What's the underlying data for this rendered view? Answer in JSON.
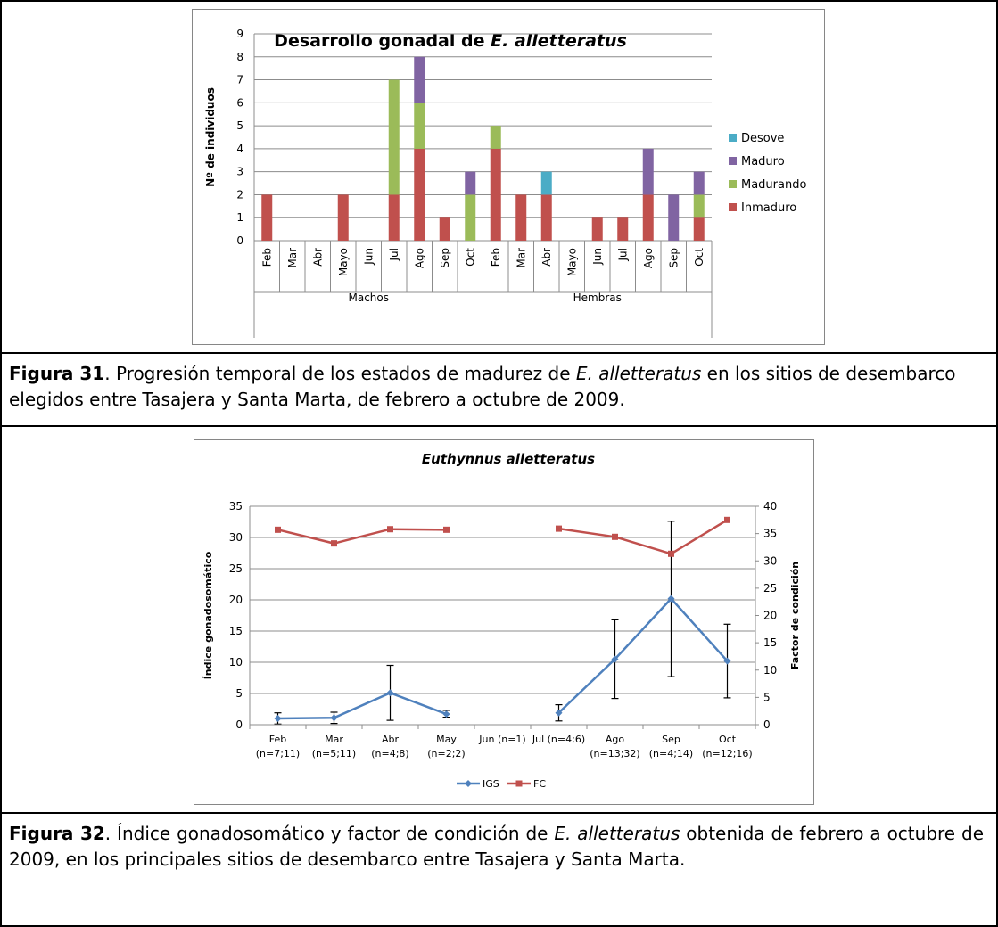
{
  "caption1": {
    "label": "Figura 31",
    "text_a": ". Progresión temporal de los estados de madurez de ",
    "species": "E. alletteratus",
    "text_b": " en los sitios de desembarco elegidos entre Tasajera y Santa Marta, de febrero a octubre de 2009."
  },
  "caption2": {
    "label": "Figura 32",
    "text_a": ". Índice gonadosomático y factor de condición de ",
    "species": "E. alletteratus",
    "text_b": " obtenida de febrero a octubre de 2009, en los principales sitios de desembarco entre Tasajera y Santa Marta."
  },
  "chart_data": [
    {
      "type": "bar",
      "stacked": true,
      "title_prefix": "Desarrollo gonadal de ",
      "title_species": "E. alletteratus",
      "ylabel": "Nº de individuos",
      "ylim": [
        0,
        9
      ],
      "yticks": [
        0,
        1,
        2,
        3,
        4,
        5,
        6,
        7,
        8,
        9
      ],
      "grid": true,
      "legend_position": "right",
      "groups": [
        {
          "name": "Machos",
          "categories": [
            "Feb",
            "Mar",
            "Abr",
            "Mayo",
            "Jun",
            "Jul",
            "Ago",
            "Sep",
            "Oct"
          ]
        },
        {
          "name": "Hembras",
          "categories": [
            "Feb",
            "Mar",
            "Abr",
            "Mayo",
            "Jun",
            "Jul",
            "Ago",
            "Sep",
            "Oct"
          ]
        }
      ],
      "series": [
        {
          "name": "Inmaduro",
          "color": "#C0504D",
          "values": [
            2,
            0,
            0,
            2,
            0,
            2,
            4,
            1,
            0,
            4,
            2,
            2,
            0,
            1,
            1,
            2,
            0,
            1
          ]
        },
        {
          "name": "Madurando",
          "color": "#9BBB59",
          "values": [
            0,
            0,
            0,
            0,
            0,
            5,
            2,
            0,
            2,
            1,
            0,
            0,
            0,
            0,
            0,
            0,
            0,
            1
          ]
        },
        {
          "name": "Maduro",
          "color": "#8064A2",
          "values": [
            0,
            0,
            0,
            0,
            0,
            0,
            2,
            0,
            1,
            0,
            0,
            0,
            0,
            0,
            0,
            2,
            2,
            1
          ]
        },
        {
          "name": "Desove",
          "color": "#4BACC6",
          "values": [
            0,
            0,
            0,
            0,
            0,
            0,
            0,
            0,
            0,
            0,
            0,
            1,
            0,
            0,
            0,
            0,
            0,
            0
          ]
        }
      ],
      "legend_order": [
        "Desove",
        "Maduro",
        "Madurando",
        "Inmaduro"
      ]
    },
    {
      "type": "line",
      "title": "Euthynnus alletteratus",
      "ylabel": "Índice gonadosomático",
      "y2label": "Factor de condición",
      "ylim": [
        0,
        35
      ],
      "yticks": [
        0,
        5,
        10,
        15,
        20,
        25,
        30,
        35
      ],
      "y2lim": [
        0,
        40
      ],
      "y2ticks": [
        0,
        5,
        10,
        15,
        20,
        25,
        30,
        35,
        40
      ],
      "grid": true,
      "legend_position": "bottom",
      "categories": [
        {
          "month": "Feb",
          "n": "(n=7;11)"
        },
        {
          "month": "Mar",
          "n": "(n=5;11)"
        },
        {
          "month": "Abr",
          "n": "(n=4;8)"
        },
        {
          "month": "May",
          "n": "(n=2;2)"
        },
        {
          "month": "Jun (n=1)",
          "n": ""
        },
        {
          "month": "Jul (n=4;6)",
          "n": ""
        },
        {
          "month": "Ago",
          "n": "(n=13;32)"
        },
        {
          "month": "Sep",
          "n": "(n=4;14)"
        },
        {
          "month": "Oct",
          "n": "(n=12;16)"
        }
      ],
      "series": [
        {
          "name": "IGS",
          "axis": "left",
          "color": "#4F81BD",
          "marker": "diamond",
          "values": [
            1.0,
            1.1,
            5.1,
            1.7,
            null,
            1.9,
            10.5,
            20.2,
            10.2
          ],
          "err_low": [
            0.1,
            0.2,
            0.7,
            1.2,
            null,
            0.6,
            4.2,
            7.7,
            4.3
          ],
          "err_high": [
            1.9,
            2.0,
            9.5,
            2.3,
            null,
            3.2,
            16.8,
            32.6,
            16.1
          ]
        },
        {
          "name": "FC",
          "axis": "right",
          "color": "#C0504D",
          "marker": "square",
          "values": [
            35.7,
            33.2,
            35.8,
            35.7,
            null,
            35.9,
            34.4,
            31.3,
            37.5
          ]
        }
      ]
    }
  ]
}
